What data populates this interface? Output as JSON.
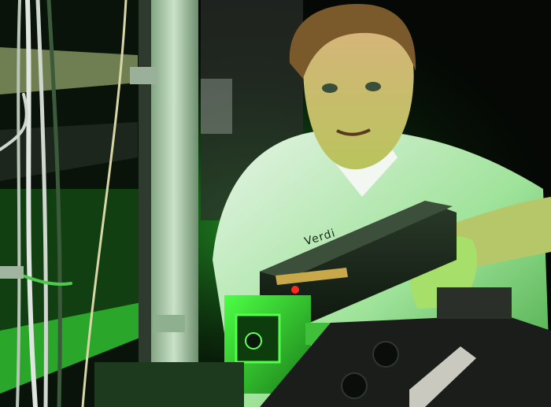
{
  "photo": {
    "subject": "",
    "equipment_label": "Verdi"
  },
  "colors": {
    "laser_green": "#39ff3a",
    "dark_green": "#0f3a10",
    "shirt": "#cfe9cf",
    "skin": "#d7b27e",
    "hair": "#7a5a2a",
    "indicator_led": "#ff2a1a",
    "rack_frame": "#a6c6a6",
    "background": "#050805"
  }
}
